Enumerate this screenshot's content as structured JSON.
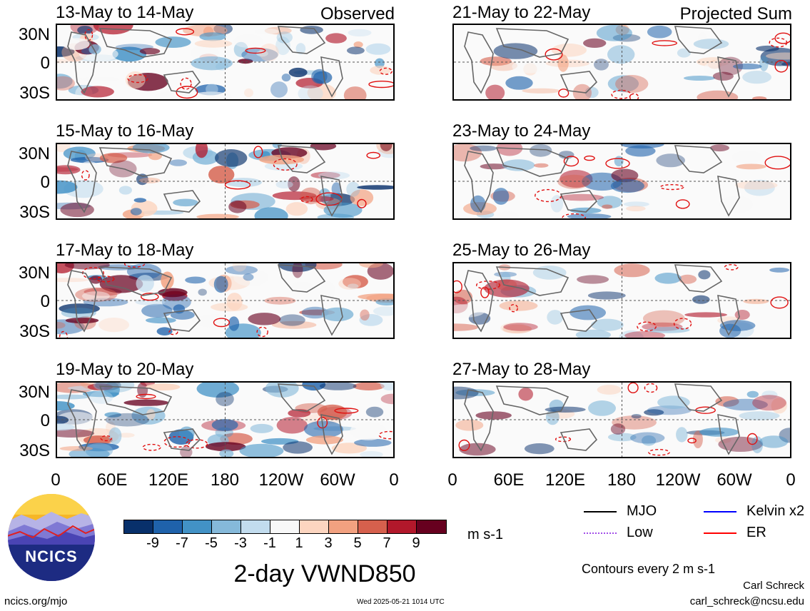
{
  "left_column": {
    "tag": "Observed",
    "panels": [
      {
        "title": "13-May to 14-May"
      },
      {
        "title": "15-May to 16-May"
      },
      {
        "title": "17-May to 18-May"
      },
      {
        "title": "19-May to 20-May"
      }
    ]
  },
  "right_column": {
    "tag": "Projected Sum",
    "panels": [
      {
        "title": "21-May to 22-May"
      },
      {
        "title": "23-May to 24-May"
      },
      {
        "title": "25-May to 26-May"
      },
      {
        "title": "27-May to 28-May"
      }
    ]
  },
  "lat_labels": [
    "30N",
    "0",
    "30S"
  ],
  "lon_labels": [
    "0",
    "60E",
    "120E",
    "180",
    "120W",
    "60W",
    "0"
  ],
  "colorbar": {
    "labels": [
      "-9",
      "-7",
      "-5",
      "-3",
      "-1",
      "1",
      "3",
      "5",
      "7",
      "9"
    ],
    "colors": [
      "#08306b",
      "#1f62ab",
      "#4292c6",
      "#85b9da",
      "#c2dcee",
      "#f8f8f8",
      "#fcd5c0",
      "#f2a180",
      "#d6604d",
      "#b2182b",
      "#67001f"
    ],
    "units": "m s-1"
  },
  "main_title": "2-day VWND850",
  "legend": {
    "items": [
      {
        "label": "MJO",
        "color": "#000000"
      },
      {
        "label": "Kelvin x2",
        "color": "#0000ff"
      },
      {
        "label": "Low",
        "color": "#a24ee8"
      },
      {
        "label": "ER",
        "color": "#ff0000"
      }
    ],
    "contours_note": "Contours every 2 m s-1"
  },
  "logo_text": "NCICS",
  "author": {
    "name": "Carl Schreck",
    "email": "carl_schreck@ncsu.edu"
  },
  "footer": {
    "url": "ncics.org/mjo",
    "timestamp": "Wed 2025-05-21 1014 UTC"
  }
}
